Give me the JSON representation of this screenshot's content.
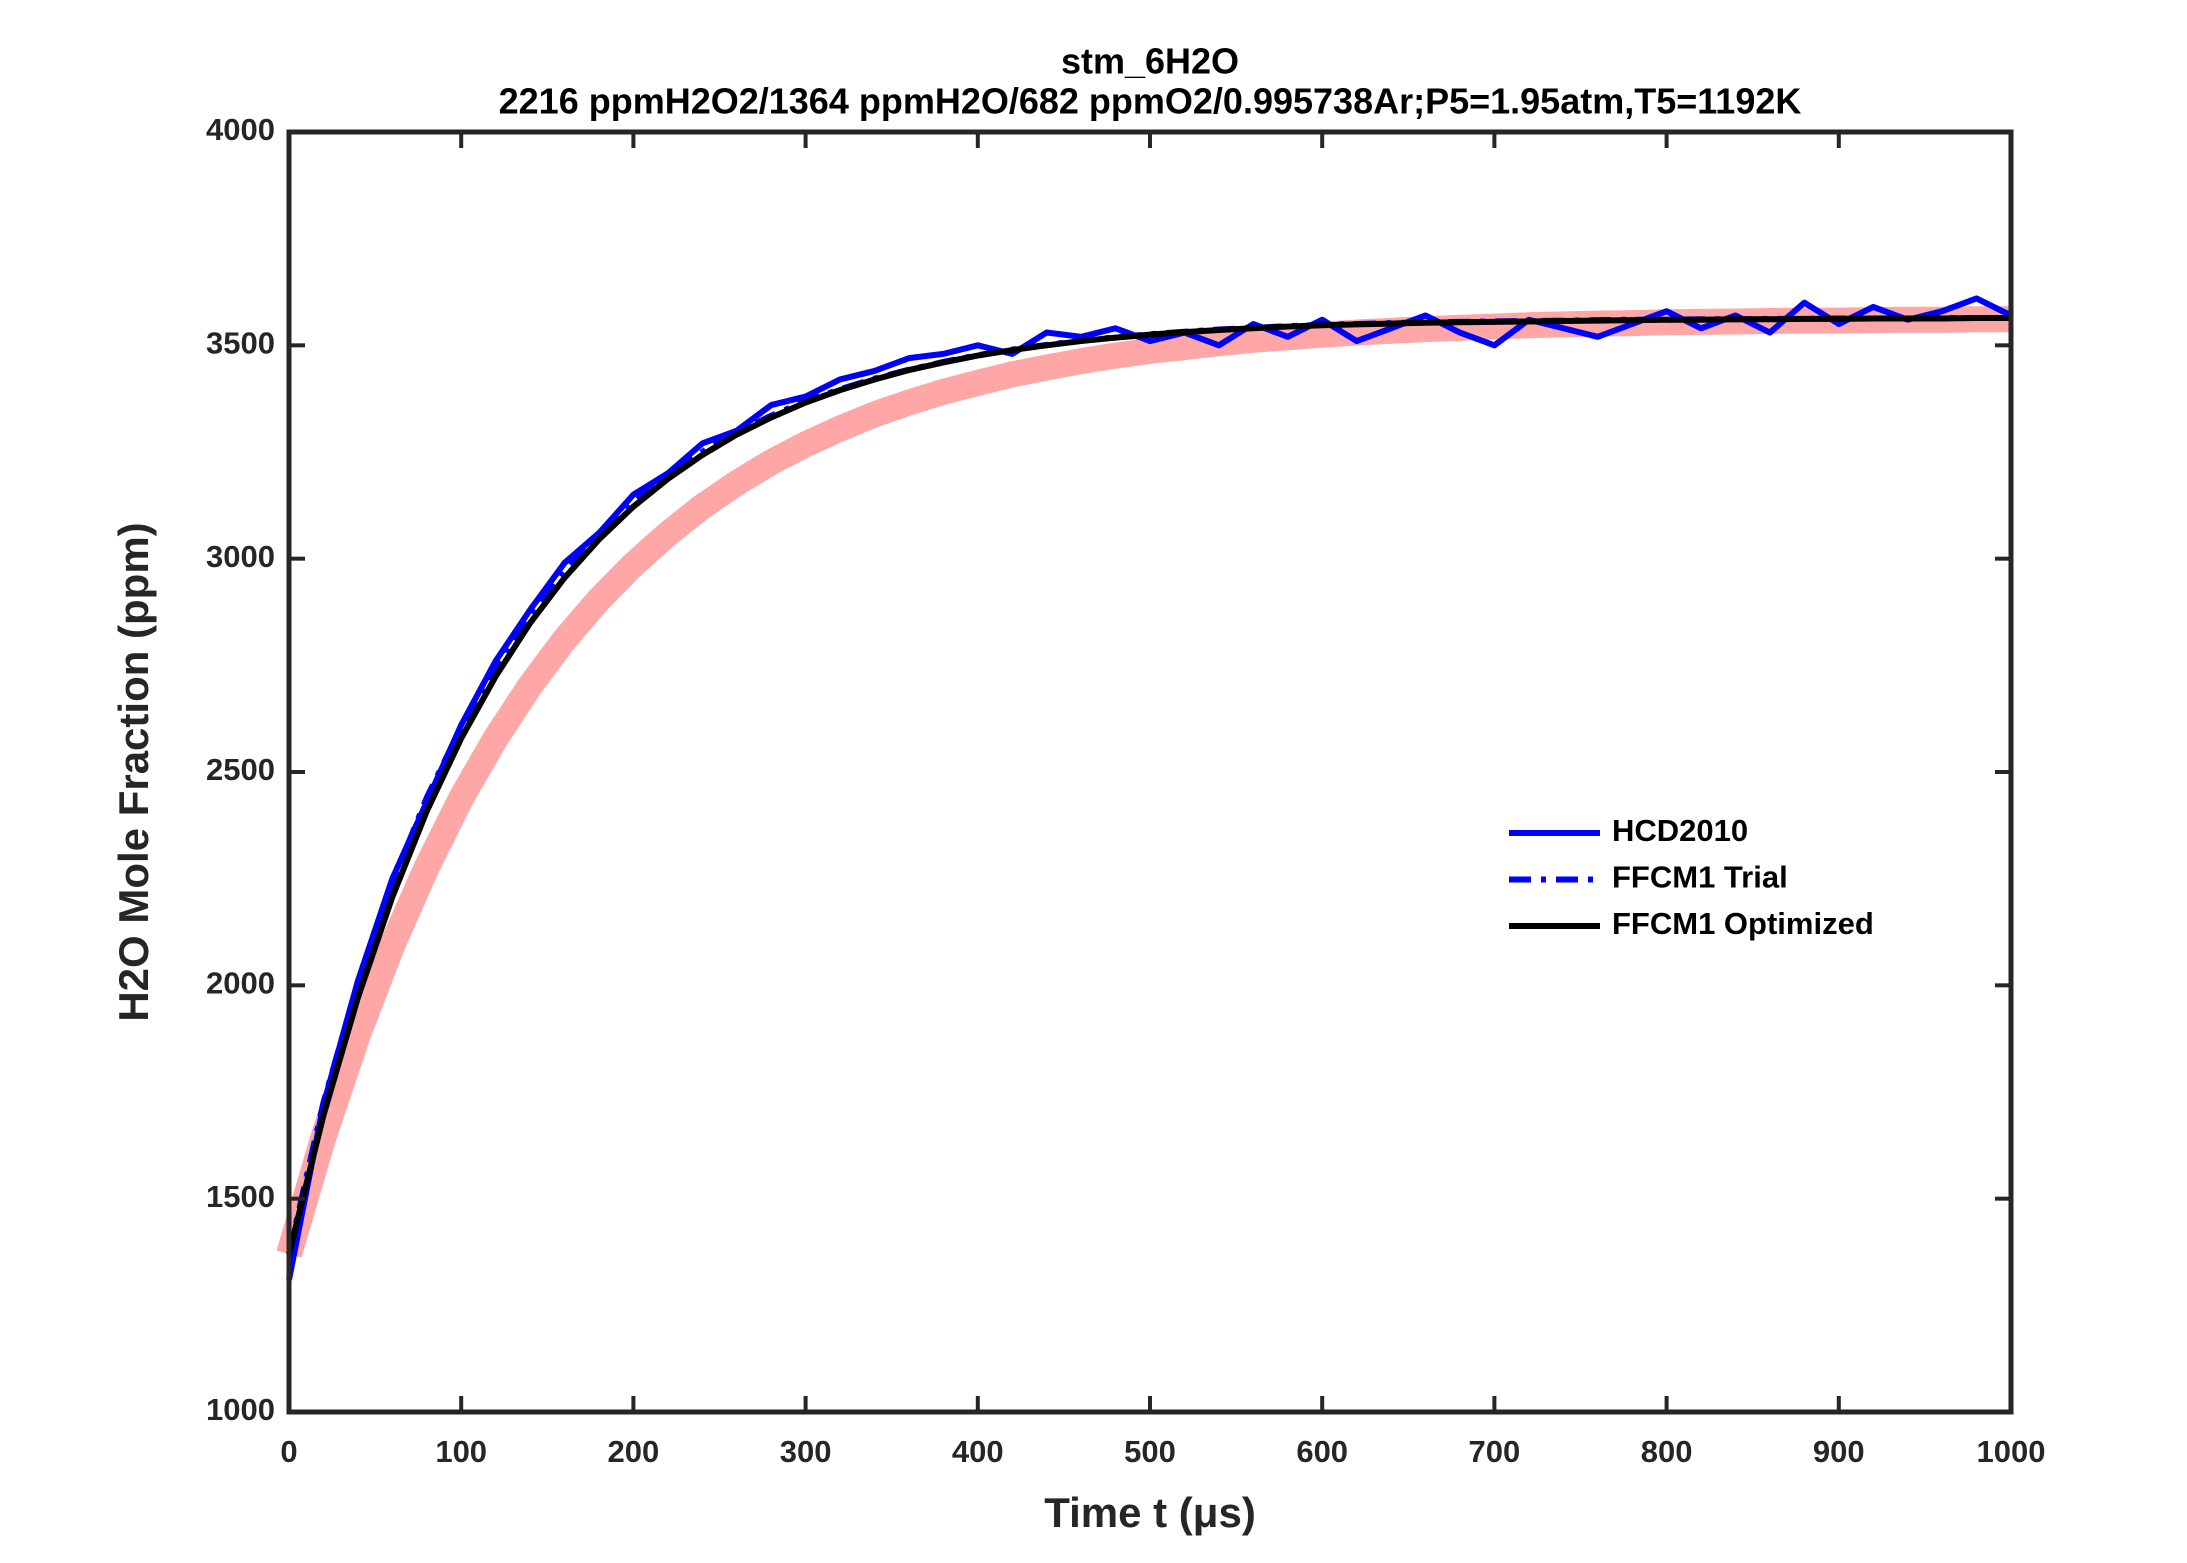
{
  "chart_data": {
    "type": "line",
    "title": "stm_6H2O",
    "subtitle": "2216 ppmH2O2/1364 ppmH2O/682 ppmO2/0.995738Ar;P5=1.95atm,T5=1192K",
    "x_label": "Time t (μs)",
    "y_label": "H2O Mole Fraction (ppm)",
    "x": [
      0,
      20,
      40,
      60,
      80,
      100,
      120,
      140,
      160,
      180,
      200,
      220,
      240,
      260,
      280,
      300,
      320,
      340,
      360,
      380,
      400,
      420,
      440,
      460,
      480,
      500,
      520,
      540,
      560,
      580,
      600,
      620,
      640,
      660,
      680,
      700,
      720,
      740,
      760,
      780,
      800,
      820,
      840,
      860,
      880,
      900,
      920,
      940,
      960,
      980,
      1000
    ],
    "series": [
      {
        "color": "#ff0000",
        "values": [
          1370,
          1644,
          1884,
          2094,
          2277,
          2439,
          2579,
          2702,
          2810,
          2904,
          2986,
          3058,
          3122,
          3177,
          3226,
          3268,
          3305,
          3338,
          3366,
          3391,
          3412,
          3432,
          3448,
          3463,
          3476,
          3487,
          3496,
          3505,
          3513,
          3519,
          3525,
          3530,
          3534,
          3538,
          3541,
          3544,
          3547,
          3549,
          3551,
          3552,
          3554,
          3555,
          3556,
          3557,
          3558,
          3558,
          3559,
          3560,
          3560,
          3561,
          3561
        ]
      },
      {
        "name": "HCD2010",
        "color": "#0000ff",
        "dash": "solid",
        "values": [
          1310,
          1720,
          2010,
          2250,
          2430,
          2610,
          2760,
          2880,
          2990,
          3060,
          3150,
          3200,
          3270,
          3300,
          3360,
          3380,
          3420,
          3440,
          3470,
          3480,
          3500,
          3480,
          3530,
          3520,
          3540,
          3510,
          3530,
          3500,
          3550,
          3520,
          3560,
          3510,
          3540,
          3570,
          3530,
          3500,
          3560,
          3540,
          3520,
          3550,
          3580,
          3540,
          3570,
          3530,
          3600,
          3550,
          3590,
          3560,
          3580,
          3610,
          3570
        ]
      },
      {
        "name": "FFCM1 Trial",
        "color": "#0000ff",
        "dash": "dashdot",
        "values": [
          1370,
          1725,
          2005,
          2240,
          2440,
          2605,
          2745,
          2865,
          2970,
          3058,
          3132,
          3195,
          3250,
          3296,
          3335,
          3369,
          3397,
          3422,
          3443,
          3461,
          3477,
          3490,
          3501,
          3511,
          3519,
          3526,
          3532,
          3537,
          3541,
          3545,
          3548,
          3550,
          3552,
          3554,
          3555,
          3556,
          3557,
          3558,
          3559,
          3560,
          3560,
          3561,
          3561,
          3562,
          3562,
          3563,
          3563,
          3563,
          3564,
          3564,
          3564
        ]
      },
      {
        "name": "FFCM1 Optimized",
        "color": "#000000",
        "dash": "solid",
        "values": [
          1370,
          1695,
          1971,
          2207,
          2408,
          2579,
          2724,
          2849,
          2955,
          3045,
          3122,
          3187,
          3243,
          3291,
          3331,
          3366,
          3395,
          3420,
          3442,
          3460,
          3476,
          3489,
          3500,
          3510,
          3518,
          3525,
          3531,
          3536,
          3540,
          3544,
          3547,
          3549,
          3551,
          3553,
          3554,
          3555,
          3556,
          3557,
          3558,
          3559,
          3560,
          3560,
          3561,
          3561,
          3562,
          3562,
          3563,
          3563,
          3563,
          3564,
          3564
        ]
      }
    ],
    "xlim": [
      0,
      1000
    ],
    "xticks": [
      0,
      100,
      200,
      300,
      400,
      500,
      600,
      700,
      800,
      900,
      1000
    ],
    "ylim": [
      1000,
      4000
    ],
    "yticks": [
      1000,
      1500,
      2000,
      2500,
      3000,
      3500,
      4000
    ],
    "grid": false,
    "legend": "right"
  }
}
